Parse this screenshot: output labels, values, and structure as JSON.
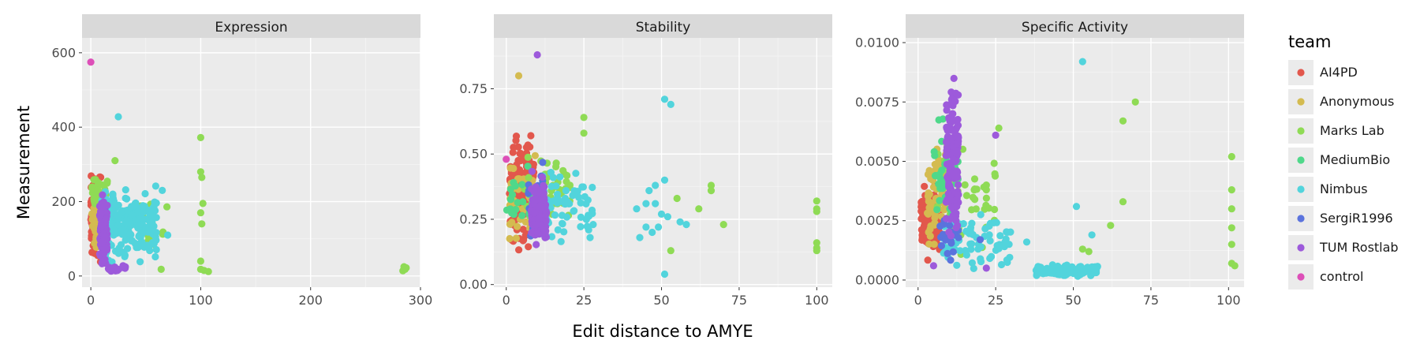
{
  "chart_data": {
    "type": "scatter",
    "xlabel": "Edit distance to AMYE",
    "ylabel": "Measurement",
    "grid": true,
    "legend": {
      "title": "team",
      "placement": "right"
    },
    "series": [
      {
        "name": "AI4PD",
        "color": "#E2574C"
      },
      {
        "name": "Anonymous",
        "color": "#D4BB50"
      },
      {
        "name": "Marks Lab",
        "color": "#8FDB55"
      },
      {
        "name": "MediumBio",
        "color": "#4FD88A"
      },
      {
        "name": "Nimbus",
        "color": "#52D4DC"
      },
      {
        "name": "SergiR1996",
        "color": "#5B73DD"
      },
      {
        "name": "TUM Rostlab",
        "color": "#9D5ADB"
      },
      {
        "name": "control",
        "color": "#DD4FB8"
      }
    ],
    "panels": [
      {
        "title": "Expression",
        "xlim": [
          -8,
          300
        ],
        "ylim": [
          -30,
          640
        ],
        "xticks": [
          0,
          100,
          200,
          300
        ],
        "xticklabels": [
          "0",
          "100",
          "200",
          "300"
        ],
        "yticks": [
          0,
          200,
          400,
          600
        ],
        "yticklabels": [
          "0",
          "200",
          "400",
          "600"
        ],
        "clusters": [
          {
            "series": "AI4PD",
            "x": [
              0,
              9
            ],
            "y": [
              10,
              300
            ],
            "n": 150
          },
          {
            "series": "Anonymous",
            "x": [
              1,
              10
            ],
            "y": [
              20,
              260
            ],
            "n": 50
          },
          {
            "series": "Marks Lab",
            "x": [
              1,
              15
            ],
            "y": [
              150,
              300
            ],
            "n": 30
          },
          {
            "series": "Marks Lab",
            "x": [
              45,
              70
            ],
            "y": [
              20,
              240
            ],
            "n": 16
          },
          {
            "series": "Nimbus",
            "x": [
              10,
              60
            ],
            "y": [
              20,
              260
            ],
            "n": 220
          },
          {
            "series": "SergiR1996",
            "x": [
              8,
              14
            ],
            "y": [
              50,
              220
            ],
            "n": 12
          },
          {
            "series": "TUM Rostlab",
            "x": [
              8,
              15
            ],
            "y": [
              0,
              240
            ],
            "n": 120
          },
          {
            "series": "TUM Rostlab",
            "x": [
              15,
              32
            ],
            "y": [
              10,
              30
            ],
            "n": 20
          }
        ],
        "points": [
          {
            "series": "control",
            "x": 0,
            "y": 575
          },
          {
            "series": "Nimbus",
            "x": 25,
            "y": 428
          },
          {
            "series": "Marks Lab",
            "x": 22,
            "y": 310
          },
          {
            "series": "Marks Lab",
            "x": 100,
            "y": 372
          },
          {
            "series": "Marks Lab",
            "x": 100,
            "y": 280
          },
          {
            "series": "Marks Lab",
            "x": 101,
            "y": 265
          },
          {
            "series": "Marks Lab",
            "x": 102,
            "y": 195
          },
          {
            "series": "Marks Lab",
            "x": 100,
            "y": 170
          },
          {
            "series": "Marks Lab",
            "x": 101,
            "y": 140
          },
          {
            "series": "Marks Lab",
            "x": 100,
            "y": 40
          },
          {
            "series": "Marks Lab",
            "x": 100,
            "y": 18
          },
          {
            "series": "Marks Lab",
            "x": 103,
            "y": 15
          },
          {
            "series": "Marks Lab",
            "x": 107,
            "y": 12
          },
          {
            "series": "Marks Lab",
            "x": 285,
            "y": 25
          },
          {
            "series": "Marks Lab",
            "x": 286,
            "y": 18
          },
          {
            "series": "Marks Lab",
            "x": 287,
            "y": 22
          },
          {
            "series": "Marks Lab",
            "x": 284,
            "y": 14
          },
          {
            "series": "Nimbus",
            "x": 65,
            "y": 230
          },
          {
            "series": "Nimbus",
            "x": 70,
            "y": 110
          },
          {
            "series": "Marks Lab",
            "x": 64,
            "y": 18
          }
        ]
      },
      {
        "title": "Stability",
        "xlim": [
          -4,
          105
        ],
        "ylim": [
          -0.01,
          0.945
        ],
        "xticks": [
          0,
          25,
          50,
          75,
          100
        ],
        "xticklabels": [
          "0",
          "25",
          "50",
          "75",
          "100"
        ],
        "yticks": [
          0,
          0.25,
          0.5,
          0.75
        ],
        "yticklabels": [
          "0.00",
          "0.25",
          "0.50",
          "0.75"
        ],
        "clusters": [
          {
            "series": "AI4PD",
            "x": [
              1,
              9
            ],
            "y": [
              0.1,
              0.62
            ],
            "n": 170
          },
          {
            "series": "Anonymous",
            "x": [
              1,
              10
            ],
            "y": [
              0.12,
              0.55
            ],
            "n": 50
          },
          {
            "series": "MediumBio",
            "x": [
              0,
              12
            ],
            "y": [
              0.18,
              0.48
            ],
            "n": 25
          },
          {
            "series": "Marks Lab",
            "x": [
              5,
              22
            ],
            "y": [
              0.2,
              0.55
            ],
            "n": 40
          },
          {
            "series": "Nimbus",
            "x": [
              10,
              28
            ],
            "y": [
              0.13,
              0.48
            ],
            "n": 70
          },
          {
            "series": "SergiR1996",
            "x": [
              7,
              12
            ],
            "y": [
              0.1,
              0.55
            ],
            "n": 20
          },
          {
            "series": "TUM Rostlab",
            "x": [
              8,
              13
            ],
            "y": [
              0.12,
              0.45
            ],
            "n": 130
          }
        ],
        "points": [
          {
            "series": "Anonymous",
            "x": 4,
            "y": 0.8
          },
          {
            "series": "TUM Rostlab",
            "x": 10,
            "y": 0.88
          },
          {
            "series": "control",
            "x": 0,
            "y": 0.48
          },
          {
            "series": "Marks Lab",
            "x": 25,
            "y": 0.64
          },
          {
            "series": "Marks Lab",
            "x": 25,
            "y": 0.58
          },
          {
            "series": "Nimbus",
            "x": 51,
            "y": 0.71
          },
          {
            "series": "Nimbus",
            "x": 53,
            "y": 0.69
          },
          {
            "series": "Nimbus",
            "x": 48,
            "y": 0.38
          },
          {
            "series": "Nimbus",
            "x": 51,
            "y": 0.4
          },
          {
            "series": "Nimbus",
            "x": 46,
            "y": 0.36
          },
          {
            "series": "Nimbus",
            "x": 42,
            "y": 0.29
          },
          {
            "series": "Nimbus",
            "x": 45,
            "y": 0.31
          },
          {
            "series": "Nimbus",
            "x": 48,
            "y": 0.31
          },
          {
            "series": "Nimbus",
            "x": 50,
            "y": 0.27
          },
          {
            "series": "Nimbus",
            "x": 52,
            "y": 0.26
          },
          {
            "series": "Nimbus",
            "x": 56,
            "y": 0.24
          },
          {
            "series": "Nimbus",
            "x": 58,
            "y": 0.23
          },
          {
            "series": "Nimbus",
            "x": 49,
            "y": 0.22
          },
          {
            "series": "Nimbus",
            "x": 45,
            "y": 0.22
          },
          {
            "series": "Nimbus",
            "x": 43,
            "y": 0.18
          },
          {
            "series": "Nimbus",
            "x": 47,
            "y": 0.2
          },
          {
            "series": "Nimbus",
            "x": 51,
            "y": 0.04
          },
          {
            "series": "Marks Lab",
            "x": 55,
            "y": 0.33
          },
          {
            "series": "Marks Lab",
            "x": 62,
            "y": 0.29
          },
          {
            "series": "Marks Lab",
            "x": 66,
            "y": 0.38
          },
          {
            "series": "Marks Lab",
            "x": 66,
            "y": 0.36
          },
          {
            "series": "Marks Lab",
            "x": 70,
            "y": 0.23
          },
          {
            "series": "Marks Lab",
            "x": 53,
            "y": 0.13
          },
          {
            "series": "Marks Lab",
            "x": 100,
            "y": 0.32
          },
          {
            "series": "Marks Lab",
            "x": 100,
            "y": 0.29
          },
          {
            "series": "Marks Lab",
            "x": 100,
            "y": 0.28
          },
          {
            "series": "Marks Lab",
            "x": 100,
            "y": 0.16
          },
          {
            "series": "Marks Lab",
            "x": 100,
            "y": 0.14
          },
          {
            "series": "Marks Lab",
            "x": 100,
            "y": 0.13
          },
          {
            "series": "Nimbus",
            "x": 28,
            "y": 0.23
          },
          {
            "series": "Nimbus",
            "x": 27,
            "y": 0.18
          }
        ]
      },
      {
        "title": "Specific Activity",
        "xlim": [
          -4,
          105
        ],
        "ylim": [
          -0.0003,
          0.0102
        ],
        "xticks": [
          0,
          25,
          50,
          75,
          100
        ],
        "xticklabels": [
          "0",
          "25",
          "50",
          "75",
          "100"
        ],
        "yticks": [
          0,
          0.0025,
          0.005,
          0.0075,
          0.01
        ],
        "yticklabels": [
          "0.0000",
          "0.0025",
          "0.0050",
          "0.0075",
          "0.0100"
        ],
        "clusters": [
          {
            "series": "AI4PD",
            "x": [
              1,
              7
            ],
            "y": [
              0.0005,
              0.0042
            ],
            "n": 140
          },
          {
            "series": "Anonymous",
            "x": [
              3,
              9
            ],
            "y": [
              0.0008,
              0.0062
            ],
            "n": 60
          },
          {
            "series": "MediumBio",
            "x": [
              5,
              13
            ],
            "y": [
              0.0012,
              0.0075
            ],
            "n": 40
          },
          {
            "series": "Marks Lab",
            "x": [
              6,
              25
            ],
            "y": [
              0.0008,
              0.0062
            ],
            "n": 45
          },
          {
            "series": "Nimbus",
            "x": [
              8,
              30
            ],
            "y": [
              0.0001,
              0.0032
            ],
            "n": 70
          },
          {
            "series": "Nimbus",
            "x": [
              38,
              58
            ],
            "y": [
              0.0001,
              0.0007
            ],
            "n": 150
          },
          {
            "series": "SergiR1996",
            "x": [
              7,
              14
            ],
            "y": [
              0.0005,
              0.0028
            ],
            "n": 20
          },
          {
            "series": "TUM Rostlab",
            "x": [
              9,
              13
            ],
            "y": [
              0.0005,
              0.0098
            ],
            "n": 130
          }
        ],
        "points": [
          {
            "series": "Nimbus",
            "x": 53,
            "y": 0.0092
          },
          {
            "series": "Marks Lab",
            "x": 70,
            "y": 0.0075
          },
          {
            "series": "Marks Lab",
            "x": 66,
            "y": 0.0067
          },
          {
            "series": "Marks Lab",
            "x": 26,
            "y": 0.0064
          },
          {
            "series": "TUM Rostlab",
            "x": 25,
            "y": 0.0061
          },
          {
            "series": "Marks Lab",
            "x": 101,
            "y": 0.0052
          },
          {
            "series": "Marks Lab",
            "x": 101,
            "y": 0.0038
          },
          {
            "series": "Marks Lab",
            "x": 101,
            "y": 0.003
          },
          {
            "series": "Marks Lab",
            "x": 101,
            "y": 0.0022
          },
          {
            "series": "Marks Lab",
            "x": 101,
            "y": 0.0015
          },
          {
            "series": "Marks Lab",
            "x": 101,
            "y": 0.0007
          },
          {
            "series": "Marks Lab",
            "x": 102,
            "y": 0.0006
          },
          {
            "series": "Marks Lab",
            "x": 66,
            "y": 0.0033
          },
          {
            "series": "Marks Lab",
            "x": 62,
            "y": 0.0023
          },
          {
            "series": "Marks Lab",
            "x": 53,
            "y": 0.0013
          },
          {
            "series": "Marks Lab",
            "x": 55,
            "y": 0.0012
          },
          {
            "series": "Nimbus",
            "x": 51,
            "y": 0.0031
          },
          {
            "series": "Nimbus",
            "x": 56,
            "y": 0.0019
          },
          {
            "series": "Nimbus",
            "x": 28,
            "y": 0.0016
          },
          {
            "series": "Nimbus",
            "x": 35,
            "y": 0.0016
          },
          {
            "series": "Marks Lab",
            "x": 22,
            "y": 0.004
          },
          {
            "series": "Marks Lab",
            "x": 22,
            "y": 0.0038
          },
          {
            "series": "SergiR1996",
            "x": 20,
            "y": 0.0017
          },
          {
            "series": "TUM Rostlab",
            "x": 22,
            "y": 0.0005
          },
          {
            "series": "TUM Rostlab",
            "x": 5,
            "y": 0.0006
          }
        ]
      }
    ]
  }
}
